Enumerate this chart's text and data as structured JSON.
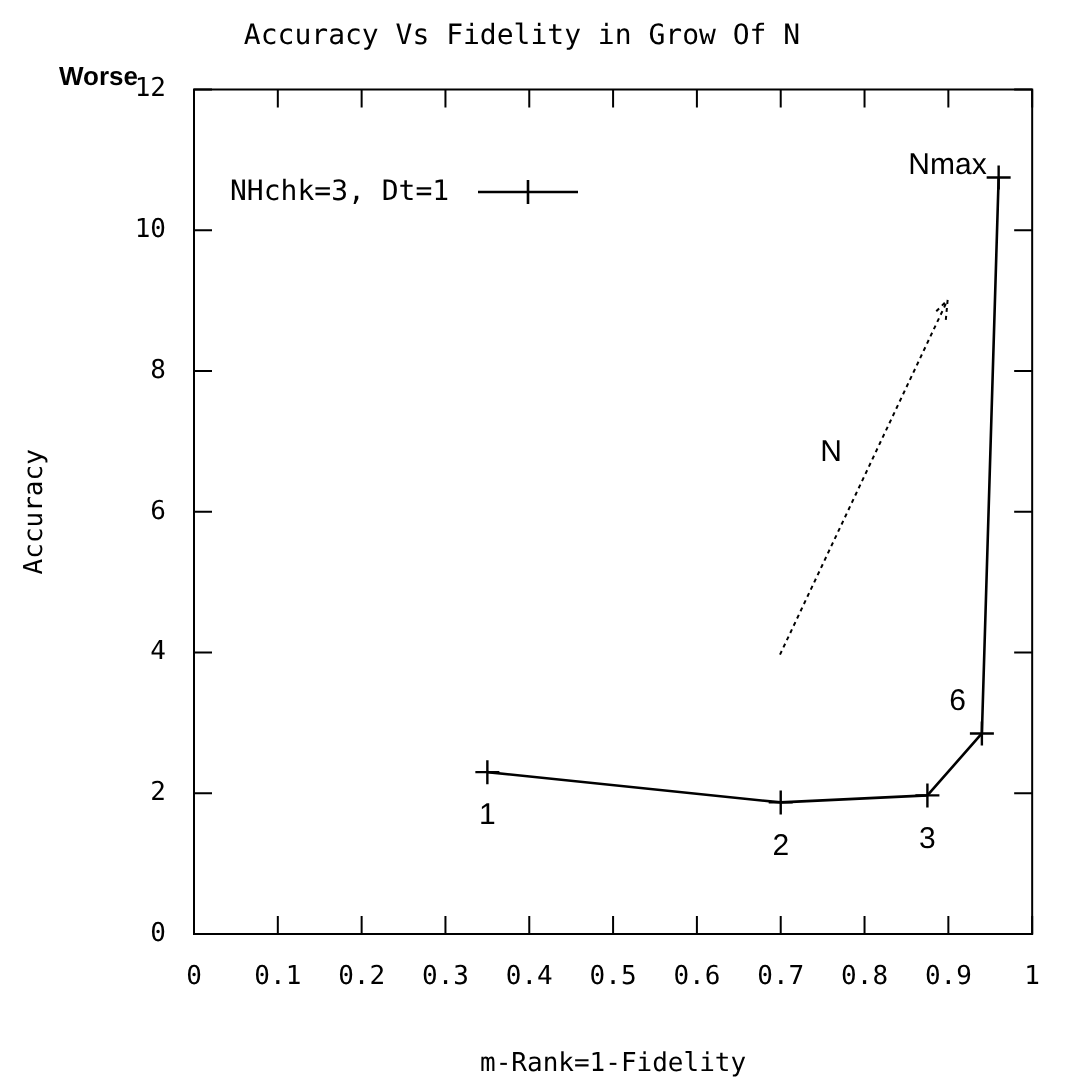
{
  "chart_data": {
    "type": "line",
    "title": "Accuracy Vs Fidelity in Grow Of N",
    "xlabel": "m-Rank=1-Fidelity",
    "ylabel": "Accuracy",
    "x": [
      0.35,
      0.7,
      0.875,
      0.94,
      0.96
    ],
    "series": [
      {
        "name": "NHchk=3, Dt=1",
        "color": "#000000",
        "values": [
          2.3,
          1.87,
          1.97,
          2.85,
          10.75
        ]
      }
    ],
    "xlim": [
      0,
      1
    ],
    "xticks": [
      0,
      0.1,
      0.2,
      0.3,
      0.4,
      0.5,
      0.6,
      0.7,
      0.8,
      0.9,
      1
    ],
    "ylim": [
      0,
      12
    ],
    "yticks": [
      0,
      2,
      4,
      6,
      8,
      10,
      12
    ],
    "grid": false,
    "legend": "top left",
    "marker": "cross",
    "line_style": "solid",
    "annotations": [
      "Worse",
      {
        "text": "1",
        "x": 0.35,
        "y": 2.3
      },
      {
        "text": "2",
        "x": 0.7,
        "y": 1.87
      },
      {
        "text": "3",
        "x": 0.875,
        "y": 1.97
      },
      {
        "text": "6",
        "x": 0.94,
        "y": 2.85
      },
      {
        "text": "Nmax",
        "x": 0.96,
        "y": 10.75
      },
      "N"
    ]
  }
}
